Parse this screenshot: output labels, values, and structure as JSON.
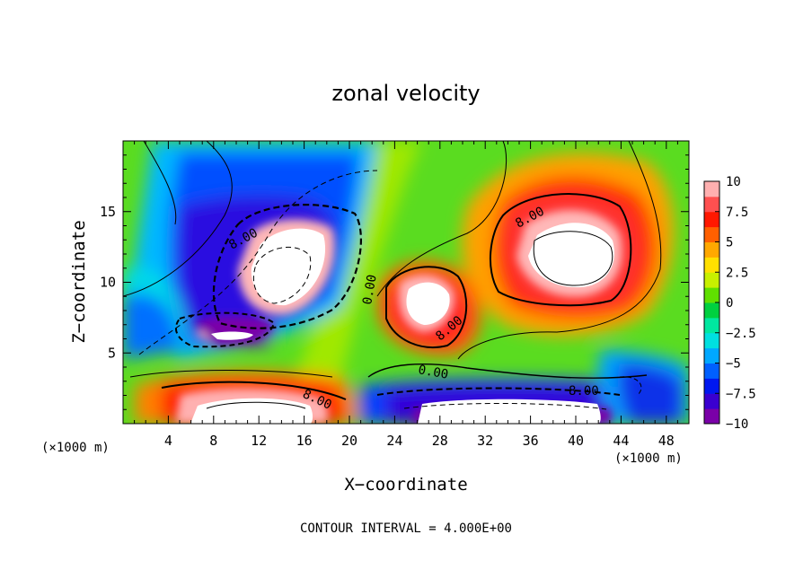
{
  "chart_data": {
    "type": "heatmap",
    "title": "zonal velocity",
    "xlabel": "X−coordinate",
    "ylabel": "Z−coordinate",
    "x_units_left": "(×1000 m)",
    "x_units_right": "(×1000 m)",
    "xlim": [
      0,
      50
    ],
    "ylim": [
      0,
      20
    ],
    "x_ticks": [
      4,
      8,
      12,
      16,
      20,
      24,
      28,
      32,
      36,
      40,
      44,
      48
    ],
    "y_ticks": [
      5,
      10,
      15
    ],
    "colorbar": {
      "min": -10,
      "max": 10,
      "ticks": [
        "10",
        "7.5",
        "5",
        "2.5",
        "0",
        "−2.5",
        "−5",
        "−7.5",
        "−10"
      ],
      "colors": [
        "#7a00a8",
        "#3a00d0",
        "#0018f0",
        "#0060ff",
        "#00a8ff",
        "#00e0e0",
        "#00e8a0",
        "#00d040",
        "#60e000",
        "#c8f000",
        "#ffe000",
        "#ffa800",
        "#ff6000",
        "#ff1800",
        "#ff5050",
        "#ffb0b0"
      ]
    },
    "contour_labels": [
      "8.00",
      "8.00",
      "8.00",
      "0.00",
      "0.00",
      "8.00",
      "8.00",
      "8.00"
    ],
    "features": [
      {
        "kind": "positive-core",
        "x": 15,
        "z": 11,
        "value": 10
      },
      {
        "kind": "positive-core",
        "x": 39,
        "z": 12,
        "value": 11
      },
      {
        "kind": "positive-core",
        "x": 25.5,
        "z": 8.5,
        "value": 11
      },
      {
        "kind": "positive-core",
        "x": 14,
        "z": 1,
        "value": 10
      },
      {
        "kind": "negative-core",
        "x": 10,
        "z": 7.5,
        "value": -9
      },
      {
        "kind": "negative-core",
        "x": 14,
        "z": 18,
        "value": -7
      },
      {
        "kind": "negative-core",
        "x": 36,
        "z": 1,
        "value": -11
      },
      {
        "kind": "negative-core",
        "x": 45,
        "z": 3,
        "value": -7
      },
      {
        "kind": "negative-core",
        "x": 3,
        "z": 6,
        "value": -7
      }
    ],
    "footer": "CONTOUR INTERVAL = 4.000E+00"
  }
}
